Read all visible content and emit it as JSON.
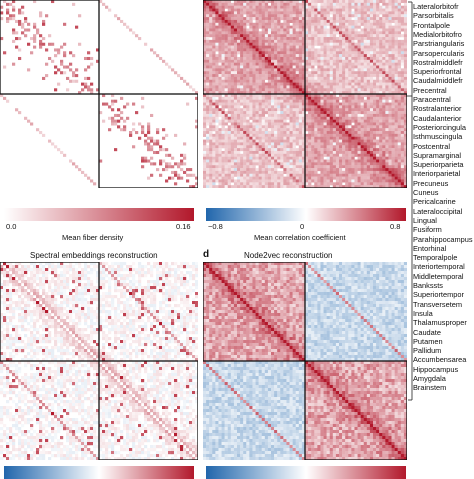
{
  "panel_a": {
    "colorbar": {
      "min_label": "0.0",
      "max_label": "0.16",
      "label": "Mean fiber density",
      "colors": [
        "#ffffff",
        "#b2182b"
      ]
    }
  },
  "panel_b": {
    "colorbar": {
      "min_label": "−0.8",
      "mid_label": "0",
      "max_label": "0.8",
      "label": "Mean correlation coefficient",
      "colors": [
        "#2166ac",
        "#ffffff",
        "#b2182b"
      ]
    }
  },
  "panel_c": {
    "title": "Spectral embeddings reconstruction",
    "colorbar": {
      "colors": [
        "#2166ac",
        "#ffffff",
        "#b2182b"
      ]
    }
  },
  "panel_d": {
    "letter": "d",
    "title": "Node2vec reconstruction",
    "colorbar": {
      "colors": [
        "#2166ac",
        "#ffffff",
        "#b2182b"
      ]
    }
  },
  "regions": [
    "Lateralorbitofr",
    "Parsorbitalis",
    "Frontalpole",
    "Medialorbitofro",
    "Parstriangularis",
    "Parsopercularis",
    "Rostralmiddlefr",
    "Superiorfrontal",
    "Caudalmiddlefr",
    "Precentral",
    "Paracentral",
    "Rostralanterior",
    "Caudalanterior",
    "Posteriorcingula",
    "Isthmuscingula",
    "Postcentral",
    "Supramarginal",
    "Superiorparieta",
    "Interiorparietal",
    "Precuneus",
    "Cuneus",
    "Pericalcarine",
    "Lateraloccipital",
    "Lingual",
    "Fusiform",
    "Parahippocampus",
    "Entorhinal",
    "Temporalpole",
    "Interiortemporal",
    "Middletemporal",
    "Bankssts",
    "Superiortempor",
    "Transversetem",
    "Insula",
    "Thalamusproper",
    "Caudate",
    "Putamen",
    "Pallidum",
    "Accumbensarea",
    "Hippocampus",
    "Amygdala",
    "Brainstem"
  ]
}
